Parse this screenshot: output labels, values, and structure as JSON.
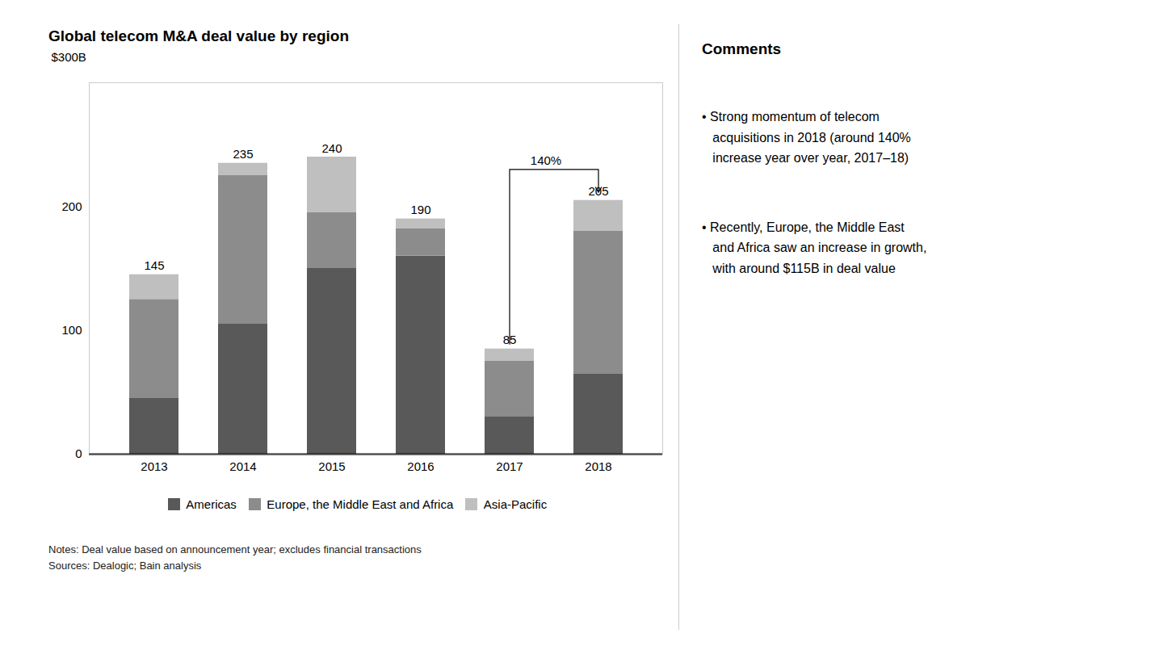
{
  "chart_data": {
    "type": "bar",
    "title": "Global telecom M&A deal value by region",
    "ylabel": "$300B",
    "categories": [
      "2013",
      "2014",
      "2015",
      "2016",
      "2017",
      "2018"
    ],
    "series": [
      {
        "name": "Americas",
        "color": "#595959",
        "values": [
          45,
          105,
          150,
          160,
          30,
          65
        ]
      },
      {
        "name": "Europe, the Middle East and Africa",
        "color": "#8c8c8c",
        "values": [
          80,
          120,
          45,
          22,
          45,
          115
        ]
      },
      {
        "name": "Asia-Pacific",
        "color": "#bfbfbf",
        "values": [
          20,
          10,
          45,
          8,
          10,
          25
        ]
      }
    ],
    "totals": [
      145,
      235,
      240,
      190,
      85,
      205
    ],
    "stacked": true,
    "ylim": [
      0,
      300
    ],
    "yticks": [
      0,
      100,
      200
    ],
    "grid": false,
    "legend": "bottom",
    "annotations": [
      {
        "text": "140%",
        "x1": "2017",
        "x2": "2018",
        "y": 230
      }
    ],
    "notes": [
      "Notes: Deal value based on announcement year; excludes financial transactions",
      "Sources: Dealogic; Bain analysis"
    ],
    "comments_title": "Comments",
    "comments": [
      "• Strong momentum of telecom\n   acquisitions in 2018 (around 140%\n   increase year over year, 2017–18)",
      "• Recently, Europe, the Middle East\n   and Africa saw an increase in growth,\n   with around $115B in deal value"
    ]
  }
}
